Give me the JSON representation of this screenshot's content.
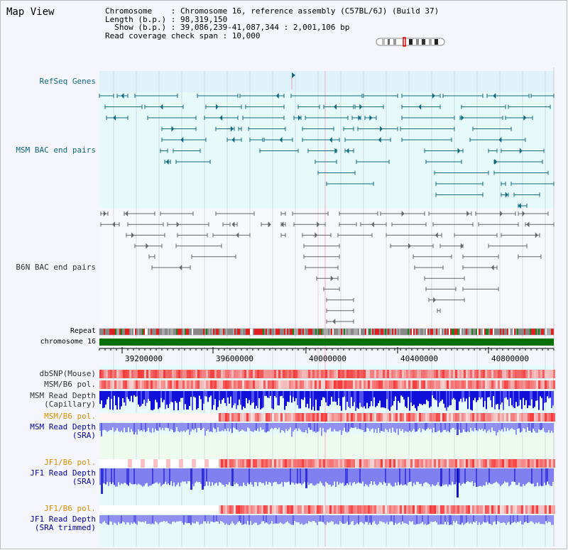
{
  "title": "Map View",
  "info": {
    "line1": "Chromosome    : Chromosome 16, reference assembly (C57BL/6J) (Build 37)",
    "line2": "Length (b.p.) : 98,319,150",
    "line3": "  Show (b.p.) : 39,086,239-41,087,344 : 2,001,106 bp",
    "line4": "Read coverage check span : 10,000"
  },
  "labels": {
    "refseq": "RefSeq Genes",
    "msm_bac": "MSM BAC end pairs",
    "b6n_bac": "B6N BAC end pairs",
    "repeat": "Repeat",
    "chromosome": "chromosome 16",
    "dbsnp": "dbSNP(Mouse)",
    "msm_pol1": "MSM/B6 pol.",
    "msm_cap": "MSM Read Depth\n(Capillary)",
    "msm_pol2": "MSM/B6 pol.",
    "msm_sra": "MSM Read Depth\n(SRA)",
    "jf1_pol1": "JF1/B6 pol.",
    "jf1_sra": "JF1 Read Depth\n(SRA)",
    "jf1_pol2": "JF1/B6 pol.",
    "jf1_trim": "JF1 Read Depth\n(SRA trimmed)"
  },
  "axis_ticks": [
    "39200000",
    "39600000",
    "40000000",
    "40400000",
    "40800000"
  ],
  "colors": {
    "teal": "#0e6a80",
    "refseq_bg": "#dff2fa",
    "bac_bg": "#e6fafa",
    "chromosome_bar": "#007000",
    "depth_blue": "#1010e0",
    "depth_light": "#8080f0",
    "pol_red": "#f03030"
  }
}
